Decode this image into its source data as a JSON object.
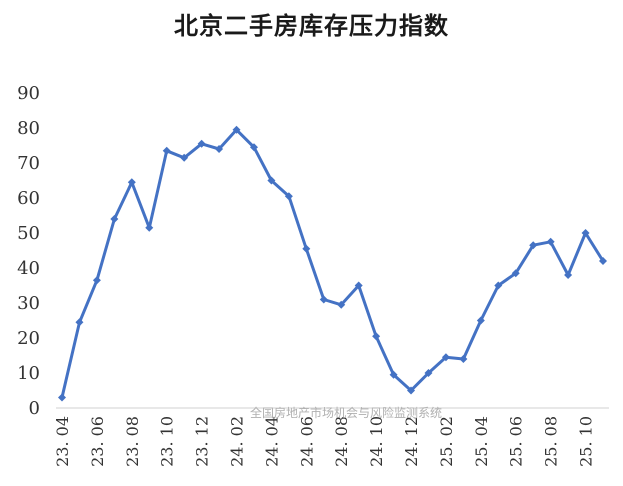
{
  "chart_data": {
    "type": "line",
    "title": "北京二手房库存压力指数",
    "xlabel": "",
    "ylabel": "",
    "ylim": [
      0,
      90
    ],
    "y_ticks": [
      0,
      10,
      20,
      30,
      40,
      50,
      60,
      70,
      80,
      90
    ],
    "grid": false,
    "legend": "none",
    "x": [
      "23.04",
      "23.05",
      "23.06",
      "23.07",
      "23.08",
      "23.09",
      "23.10",
      "23.11",
      "23.12",
      "24.01",
      "24.02",
      "24.03",
      "24.04",
      "24.05",
      "24.06",
      "24.07",
      "24.08",
      "24.09",
      "24.10",
      "24.11",
      "24.12",
      "25.01",
      "25.02",
      "25.03",
      "25.04",
      "25.05",
      "25.06",
      "25.07",
      "25.08",
      "25.09",
      "25.10",
      "25.11"
    ],
    "x_tick_labels": [
      "23. 04",
      "23. 06",
      "23. 08",
      "23. 10",
      "23. 12",
      "24. 02",
      "24. 04",
      "24. 06",
      "24. 08",
      "24. 10",
      "24. 12",
      "25. 02",
      "25. 04",
      "25. 06",
      "25. 08",
      "25. 10"
    ],
    "x_tick_every": 2,
    "series": [
      {
        "color": "#4472C4",
        "values": [
          3,
          24.5,
          36.5,
          54,
          64.5,
          51.5,
          73.5,
          71.5,
          75.5,
          74,
          79.5,
          74.5,
          65,
          60.5,
          45.5,
          31,
          29.5,
          35,
          20.5,
          9.5,
          5,
          10,
          14.5,
          14,
          25,
          35,
          38.5,
          46.5,
          47.5,
          38,
          50,
          42
        ]
      }
    ],
    "watermark": "全国房地产市场机会与风险监测系统"
  }
}
